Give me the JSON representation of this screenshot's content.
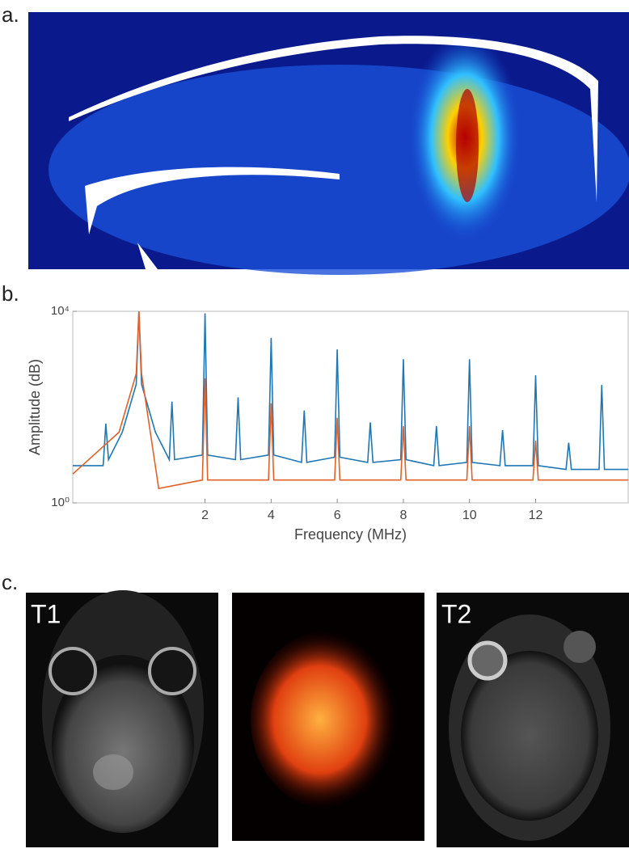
{
  "panel_labels": [
    "a.",
    "b.",
    "c."
  ],
  "image_labels": [
    "T1",
    "T2"
  ],
  "chart_data": {
    "type": "line",
    "xlabel": "Frequency (MHz)",
    "ylabel": "Amplitude (dB)",
    "log_scale": true,
    "xlim": [
      -2,
      14.8
    ],
    "xticks": [
      2,
      4,
      6,
      8,
      10,
      12
    ],
    "ylim": [
      1,
      10000
    ],
    "yticks": [
      {
        "value": 1,
        "label": "10⁰"
      },
      {
        "value": 10000,
        "label": "10⁴"
      }
    ],
    "series": [
      {
        "color": "#1f77b4",
        "x": [
          -2,
          -1.08,
          -1,
          -0.92,
          -0.5,
          -0.08,
          0,
          0.08,
          0.5,
          0.92,
          1,
          1.08,
          1.92,
          2,
          2.08,
          2.92,
          3,
          3.08,
          3.92,
          4,
          4.08,
          4.92,
          5,
          5.08,
          5.92,
          6,
          6.08,
          6.92,
          7,
          7.08,
          7.92,
          8,
          8.08,
          8.92,
          9,
          9.08,
          9.92,
          10,
          10.08,
          10.92,
          11,
          11.08,
          11.92,
          12,
          12.08,
          12.92,
          13,
          13.08,
          13.92,
          14,
          14.08,
          14.8
        ],
        "values": [
          6,
          6,
          45,
          8,
          30,
          300,
          10000,
          300,
          30,
          8,
          130,
          8,
          10,
          9000,
          10,
          8,
          160,
          8,
          10,
          2800,
          10,
          7,
          85,
          7,
          9,
          1600,
          9,
          7,
          48,
          7,
          8,
          1000,
          8,
          6,
          40,
          6,
          7,
          1000,
          7,
          6,
          33,
          6,
          6,
          460,
          6,
          5,
          18,
          5,
          5,
          290,
          5,
          5
        ]
      },
      {
        "color": "#e0622a",
        "x": [
          -2,
          -0.6,
          -0.08,
          0,
          0.08,
          0.6,
          1.92,
          2,
          2.08,
          3.92,
          4,
          4.08,
          5.92,
          6,
          6.08,
          7.92,
          8,
          8.08,
          9.92,
          10,
          10.08,
          11.92,
          12,
          12.08,
          14.8
        ],
        "values": [
          4,
          30,
          500,
          10000,
          500,
          2,
          3,
          400,
          3,
          3,
          120,
          3,
          3,
          60,
          3,
          3,
          40,
          3,
          3,
          40,
          3,
          3,
          20,
          3,
          3
        ]
      }
    ]
  }
}
